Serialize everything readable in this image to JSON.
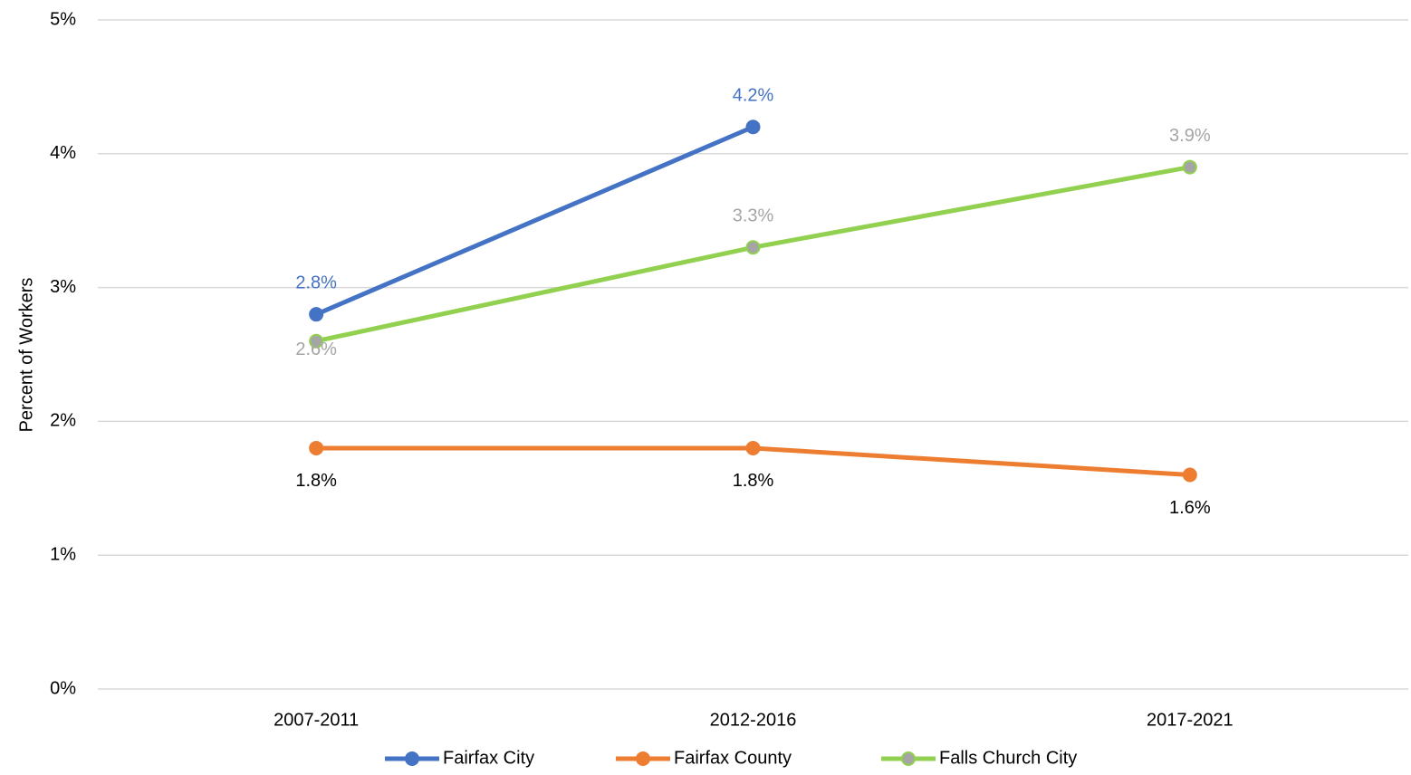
{
  "chart_data": {
    "type": "line",
    "y_label": "Percent of Workers",
    "categories": [
      "2007-2011",
      "2012-2016",
      "2017-2021"
    ],
    "series": [
      {
        "name": "Fairfax City",
        "color": "#4472c4",
        "marker_color": "#4472c4",
        "label_color": "#4472c4",
        "values": [
          2.8,
          4.2,
          null
        ],
        "value_labels": [
          "2.8%",
          "4.2%",
          null
        ]
      },
      {
        "name": "Fairfax County",
        "color": "#ed7d31",
        "marker_color": "#ed7d31",
        "label_color": "#000000",
        "values": [
          1.8,
          1.8,
          1.6
        ],
        "value_labels": [
          "1.8%",
          "1.8%",
          "1.6%"
        ]
      },
      {
        "name": "Falls Church City",
        "color": "#92d050",
        "marker_color": "#a5a5a5",
        "label_color": "#a5a5a5",
        "values": [
          2.6,
          3.3,
          3.9
        ],
        "value_labels": [
          "2.6%",
          "3.3%",
          "3.9%"
        ]
      }
    ],
    "ylim": [
      0,
      5
    ],
    "yticks": [
      {
        "value": 0,
        "label": "0%"
      },
      {
        "value": 1,
        "label": "1%"
      },
      {
        "value": 2,
        "label": "2%"
      },
      {
        "value": 3,
        "label": "3%"
      },
      {
        "value": 4,
        "label": "4%"
      },
      {
        "value": 5,
        "label": "5%"
      }
    ],
    "grid": true,
    "legend": "bottom"
  }
}
